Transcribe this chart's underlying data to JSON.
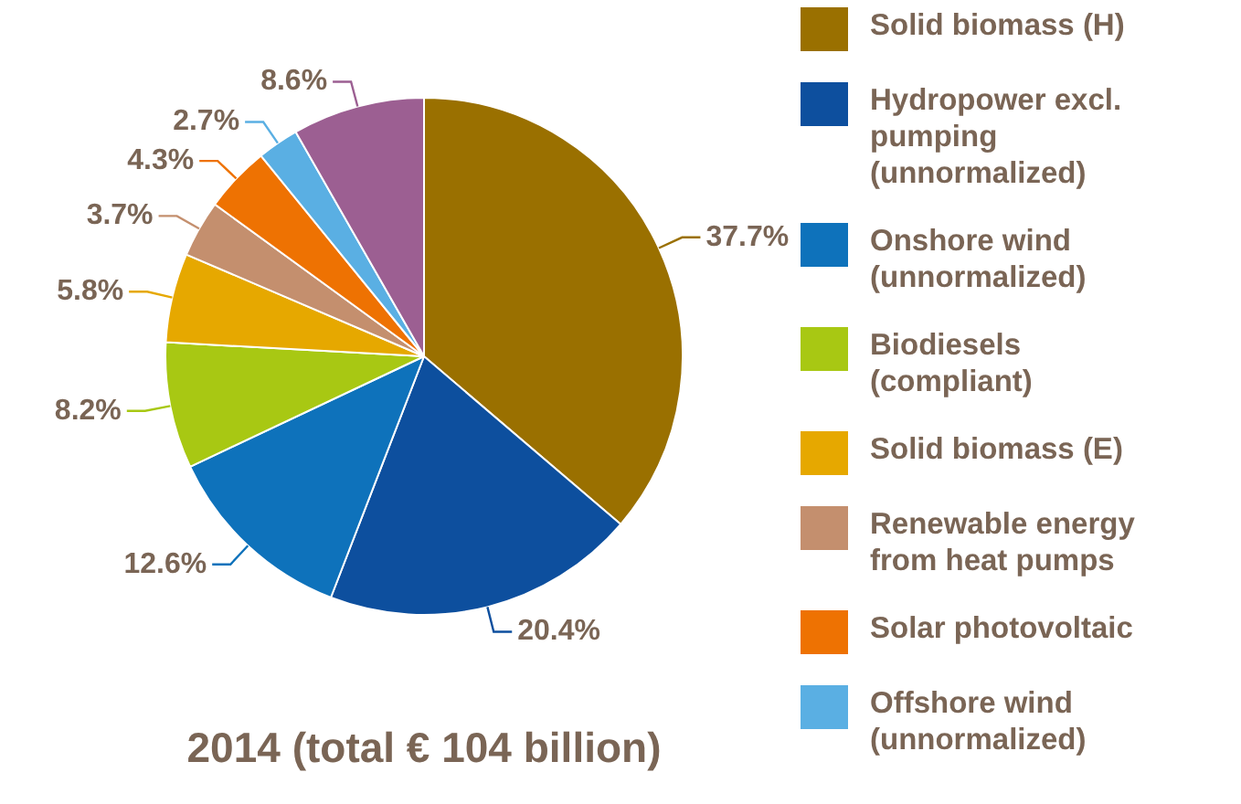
{
  "chart_data": {
    "type": "pie",
    "title": "2014 (total € 104 billion)",
    "categories": [
      "Solid biomass (H)",
      "Hydropower excl. pumping (unnormalized)",
      "Onshore wind (unnormalized)",
      "Biodiesels (compliant)",
      "Solid biomass (E)",
      "Renewable energy from heat pumps",
      "Solar photovoltaic",
      "Offshore wind (unnormalized)",
      null
    ],
    "values": [
      37.7,
      20.4,
      12.6,
      8.2,
      5.8,
      3.7,
      4.3,
      2.7,
      8.6
    ],
    "value_labels": [
      "37.7%",
      "20.4%",
      "12.6%",
      "8.2%",
      "5.8%",
      "3.7%",
      "4.3%",
      "2.7%",
      "8.6%"
    ],
    "colors": [
      "#9a7000",
      "#0d4f9e",
      "#0e72bb",
      "#a8c813",
      "#e6a800",
      "#c48f6e",
      "#ee7202",
      "#5aafe3",
      "#9c5f92"
    ],
    "legend": "right"
  }
}
